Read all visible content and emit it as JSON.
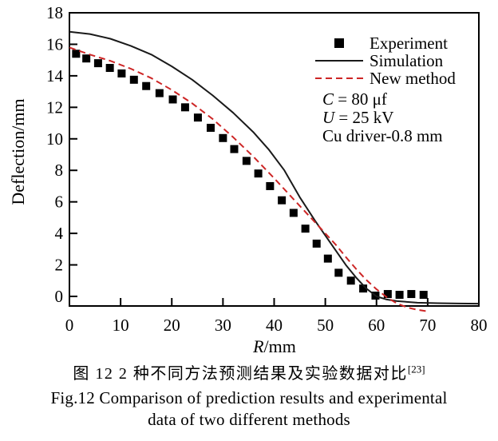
{
  "figure": {
    "caption_zh": "图 12  2 种不同方法预测结果及实验数据对比",
    "caption_zh_sup": "[23]",
    "caption_en_line1": "Fig.12 Comparison of prediction results and experimental",
    "caption_en_line2": "data of two different methods"
  },
  "chart_data": {
    "type": "line",
    "title": "",
    "xlabel_italic": "R",
    "xlabel_rest": "/mm",
    "ylabel": "Deflection/mm",
    "xlim": [
      0,
      80
    ],
    "ylim": [
      -0.66,
      18
    ],
    "xticks": [
      0,
      10,
      20,
      30,
      40,
      50,
      60,
      70,
      80
    ],
    "yticks": [
      0,
      2,
      4,
      6,
      8,
      10,
      12,
      14,
      16,
      18
    ],
    "grid": false,
    "legend_position": "top-right",
    "colors": {
      "experiment": "#000000",
      "simulation": "#1a1a1a",
      "new_method": "#cd2626"
    },
    "series": [
      {
        "name": "Experiment",
        "type": "scatter",
        "marker": "square",
        "color": "#000000",
        "points": [
          [
            1.3,
            15.4
          ],
          [
            3.3,
            15.1
          ],
          [
            5.6,
            14.8
          ],
          [
            7.9,
            14.5
          ],
          [
            10.2,
            14.15
          ],
          [
            12.6,
            13.75
          ],
          [
            15.0,
            13.35
          ],
          [
            17.6,
            12.9
          ],
          [
            20.2,
            12.5
          ],
          [
            22.6,
            12.0
          ],
          [
            25.1,
            11.35
          ],
          [
            27.6,
            10.7
          ],
          [
            30.0,
            10.05
          ],
          [
            32.2,
            9.35
          ],
          [
            34.6,
            8.6
          ],
          [
            36.9,
            7.8
          ],
          [
            39.2,
            7.0
          ],
          [
            41.5,
            6.1
          ],
          [
            43.8,
            5.3
          ],
          [
            46.1,
            4.3
          ],
          [
            48.3,
            3.35
          ],
          [
            50.5,
            2.4
          ],
          [
            52.6,
            1.5
          ],
          [
            55.0,
            1.0
          ],
          [
            57.4,
            0.5
          ],
          [
            59.8,
            0.05
          ],
          [
            62.2,
            0.15
          ],
          [
            64.5,
            0.1
          ],
          [
            66.8,
            0.15
          ],
          [
            69.2,
            0.1
          ]
        ]
      },
      {
        "name": "Simulation",
        "type": "line",
        "style": "solid",
        "color": "#1a1a1a",
        "points": [
          [
            0,
            16.8
          ],
          [
            4,
            16.65
          ],
          [
            8,
            16.35
          ],
          [
            12,
            15.9
          ],
          [
            16,
            15.35
          ],
          [
            20,
            14.6
          ],
          [
            24,
            13.75
          ],
          [
            28,
            12.75
          ],
          [
            32,
            11.65
          ],
          [
            36,
            10.4
          ],
          [
            39,
            9.3
          ],
          [
            42,
            8.0
          ],
          [
            45,
            6.3
          ],
          [
            48,
            4.8
          ],
          [
            51,
            3.4
          ],
          [
            54,
            2.0
          ],
          [
            56,
            1.2
          ],
          [
            58,
            0.5
          ],
          [
            60,
            0.0
          ],
          [
            62,
            -0.2
          ],
          [
            64,
            -0.3
          ],
          [
            68,
            -0.4
          ],
          [
            72,
            -0.43
          ],
          [
            76,
            -0.45
          ],
          [
            80,
            -0.46
          ]
        ]
      },
      {
        "name": "New method",
        "type": "line",
        "style": "dashed",
        "color": "#cd2626",
        "points": [
          [
            0,
            15.8
          ],
          [
            4,
            15.35
          ],
          [
            8,
            14.95
          ],
          [
            12,
            14.45
          ],
          [
            16,
            13.85
          ],
          [
            20,
            13.1
          ],
          [
            24,
            12.25
          ],
          [
            28,
            11.25
          ],
          [
            32,
            10.1
          ],
          [
            36,
            8.85
          ],
          [
            40,
            7.5
          ],
          [
            44,
            6.1
          ],
          [
            48,
            4.7
          ],
          [
            52,
            3.3
          ],
          [
            54,
            2.5
          ],
          [
            56,
            1.75
          ],
          [
            58,
            1.05
          ],
          [
            60,
            0.45
          ],
          [
            62,
            -0.05
          ],
          [
            64,
            -0.45
          ],
          [
            66,
            -0.7
          ],
          [
            68,
            -0.85
          ],
          [
            70,
            -0.95
          ]
        ]
      }
    ],
    "annotations": [
      {
        "lead": "C",
        "italic_lead": true,
        "rest": " = 80 μf"
      },
      {
        "lead": "U",
        "italic_lead": true,
        "rest": " = 25 kV"
      },
      {
        "lead": "",
        "italic_lead": false,
        "rest": "Cu driver-0.8 mm"
      }
    ]
  }
}
